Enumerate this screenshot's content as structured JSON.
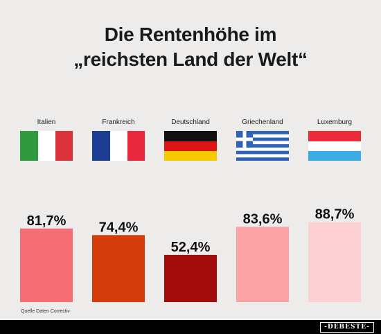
{
  "chart_data": {
    "type": "bar",
    "title_lines": [
      "Die Rentenhöhe im",
      "„reichsten Land der Welt“"
    ],
    "categories": [
      "Italien",
      "Frankreich",
      "Deutschland",
      "Griechenland",
      "Luxemburg"
    ],
    "values": [
      81.7,
      74.4,
      52.4,
      83.6,
      88.7
    ],
    "value_labels": [
      "81,7%",
      "74,4%",
      "52,4%",
      "83,6%",
      "88,7%"
    ],
    "bar_colors": [
      "#f66e75",
      "#d33d0c",
      "#a20b0b",
      "#fba3a6",
      "#fdd1d4"
    ],
    "xlabel": "",
    "ylabel": "",
    "grid": false
  },
  "flags": {
    "italy": [
      "#2f9a3f",
      "#ffffff",
      "#d9323b"
    ],
    "france": [
      "#1c3d94",
      "#ffffff",
      "#e8283d"
    ],
    "germany": [
      "#111111",
      "#dd1515",
      "#f8c900"
    ],
    "greece": [
      "#2f62b8",
      "#ffffff"
    ],
    "luxembourg": [
      "#ec2b3a",
      "#ffffff",
      "#3dabe5"
    ]
  },
  "source": "Quelle Daten Correctiv",
  "badge": "DEBESTE"
}
